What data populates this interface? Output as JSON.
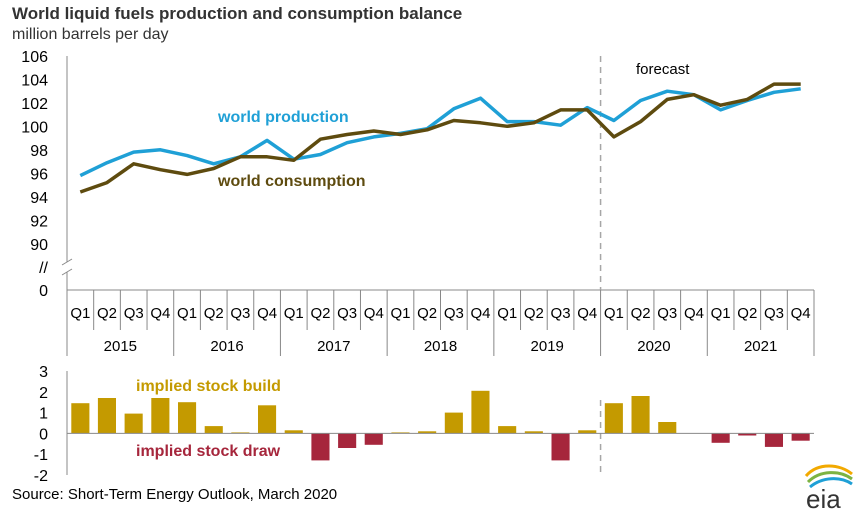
{
  "header": {
    "title": "World liquid fuels production and consumption balance",
    "subtitle": "million barrels per day"
  },
  "source": "Source: Short-Term Energy Outlook, March 2020",
  "logo_text": "eia",
  "colors": {
    "production": "#1fa0d6",
    "consumption": "#5e4b0f",
    "build": "#c49a00",
    "draw": "#a6263c",
    "forecast_line": "#a6a6a6",
    "axis": "#888888"
  },
  "chart_data": [
    {
      "type": "line",
      "annotation": "forecast",
      "categories": [
        "Q1",
        "Q2",
        "Q3",
        "Q4",
        "Q1",
        "Q2",
        "Q3",
        "Q4",
        "Q1",
        "Q2",
        "Q3",
        "Q4",
        "Q1",
        "Q2",
        "Q3",
        "Q4",
        "Q1",
        "Q2",
        "Q3",
        "Q4",
        "Q1",
        "Q2",
        "Q3",
        "Q4",
        "Q1",
        "Q2",
        "Q3",
        "Q4"
      ],
      "years": [
        "2015",
        "2016",
        "2017",
        "2018",
        "2019",
        "2020",
        "2021"
      ],
      "yticks": [
        "106",
        "104",
        "102",
        "100",
        "98",
        "96",
        "94",
        "92",
        "90",
        "//",
        "0"
      ],
      "ylim": [
        88,
        106
      ],
      "axis_break": true,
      "forecast_start_index": 20,
      "series": [
        {
          "name": "world production",
          "values": [
            95.8,
            96.9,
            97.8,
            98.0,
            97.5,
            96.8,
            97.4,
            98.8,
            97.2,
            97.6,
            98.6,
            99.1,
            99.4,
            99.8,
            101.5,
            102.4,
            100.4,
            100.4,
            100.1,
            101.6,
            100.5,
            102.2,
            103.0,
            102.7,
            101.4,
            102.2,
            102.9,
            103.2
          ]
        },
        {
          "name": "world consumption",
          "values": [
            94.4,
            95.2,
            96.8,
            96.3,
            95.9,
            96.4,
            97.4,
            97.4,
            97.1,
            98.9,
            99.3,
            99.6,
            99.3,
            99.7,
            100.5,
            100.3,
            100.0,
            100.3,
            101.4,
            101.4,
            99.1,
            100.4,
            102.3,
            102.7,
            101.8,
            102.3,
            103.6,
            103.6
          ]
        }
      ]
    },
    {
      "type": "bar",
      "ylim": [
        -2,
        3
      ],
      "yticks": [
        "3",
        "2",
        "1",
        "0",
        "-1",
        "-2"
      ],
      "labels": {
        "build": "implied stock  build",
        "draw": "implied stock draw"
      },
      "values": [
        1.45,
        1.7,
        0.95,
        1.7,
        1.5,
        0.35,
        0.05,
        1.35,
        0.15,
        -1.3,
        -0.7,
        -0.55,
        0.05,
        0.1,
        1.0,
        2.05,
        0.35,
        0.1,
        -1.3,
        0.15,
        1.45,
        1.8,
        0.55,
        0.0,
        -0.45,
        -0.1,
        -0.65,
        -0.35
      ]
    }
  ]
}
